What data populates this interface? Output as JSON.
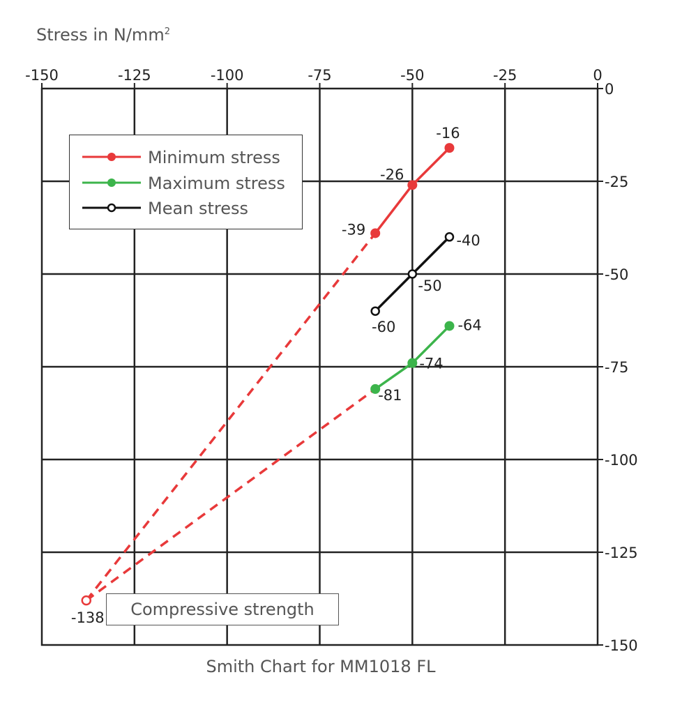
{
  "chart_data": {
    "type": "line",
    "title": "Smith Chart for MM1018 FL",
    "ylabel": "Stress in N/mm",
    "ylabel_superscript": "2",
    "xlim": [
      -150,
      0
    ],
    "ylim": [
      -150,
      0
    ],
    "x_ticks": [
      -150,
      -125,
      -100,
      -75,
      -50,
      -25,
      0
    ],
    "y_ticks": [
      0,
      -25,
      -50,
      -75,
      -100,
      -125,
      -150
    ],
    "x_tick_labels": [
      "-150",
      "-125",
      "-100",
      "-75",
      "-50",
      "-25",
      "0"
    ],
    "y_tick_labels": [
      "0",
      "-25",
      "-50",
      "-75",
      "-100",
      "-125",
      "-150"
    ],
    "x_axis_position": "top",
    "y_axis_position": "right",
    "grid": true,
    "legend_position": "top-left",
    "series": [
      {
        "name": "Minimum stress",
        "color": "#e8393a",
        "marker": "filled",
        "x": [
          -60,
          -50,
          -40
        ],
        "y": [
          -39,
          -26,
          -16
        ],
        "labels": [
          "-39",
          "-26",
          "-16"
        ]
      },
      {
        "name": "Maximum stress",
        "color": "#3cb44b",
        "marker": "filled",
        "x": [
          -60,
          -50,
          -40
        ],
        "y": [
          -81,
          -74,
          -64
        ],
        "labels": [
          "-81",
          "-74",
          "-64"
        ]
      },
      {
        "name": "Mean stress",
        "color": "#111111",
        "marker": "open",
        "x": [
          -60,
          -50,
          -40
        ],
        "y": [
          -60,
          -50,
          -40
        ],
        "labels": [
          "-60",
          "-50",
          "-40"
        ]
      }
    ],
    "extrapolation": {
      "style": "dashed",
      "color": "#e8393a",
      "point": {
        "x": -138,
        "y": -138,
        "label": "-138"
      },
      "from_series": [
        "Minimum stress",
        "Maximum stress"
      ],
      "annotation": "Compressive strength"
    }
  }
}
